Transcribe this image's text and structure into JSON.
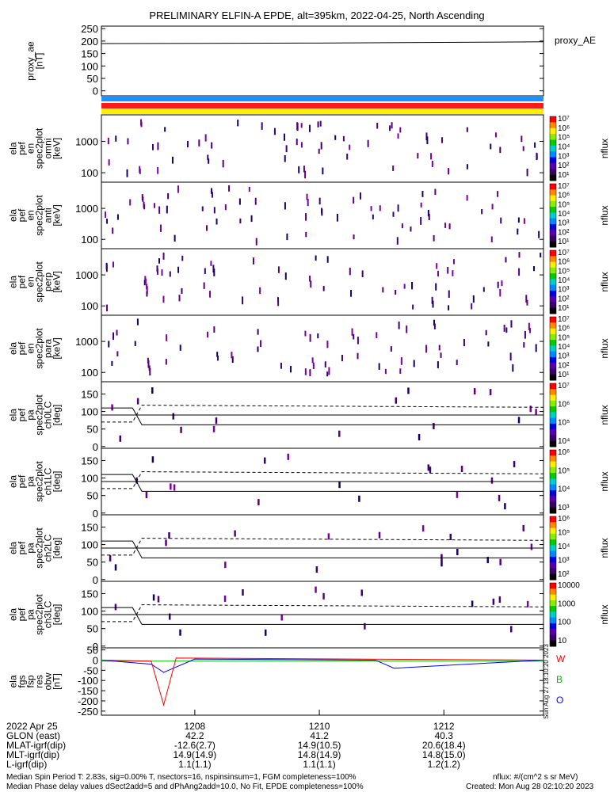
{
  "title": "PRELIMINARY ELFIN-A EPDE, alt=395km, 2022-04-25, North Ascending",
  "panels": [
    {
      "id": "ae",
      "label_lines": [
        "proxy_ae",
        "[nT]"
      ],
      "right_label": "proxy_AE",
      "ticks": [
        "250",
        "200",
        "150",
        "100",
        "50",
        "0"
      ],
      "tick_values": [
        250,
        200,
        150,
        100,
        50,
        0
      ],
      "ylim": [
        -20,
        260
      ]
    },
    {
      "id": "spec_omni",
      "label_lines": [
        "ela",
        "pef",
        "en",
        "spec2plot",
        "omni",
        "[keV]"
      ],
      "ticks": [
        "1000",
        "100"
      ],
      "tick_values": [
        1000,
        100
      ],
      "ylim": [
        50,
        7000
      ],
      "scale": "log",
      "colorbar": {
        "labels": [
          "10⁷",
          "10⁶",
          "10⁵",
          "10⁴",
          "10³",
          "10²",
          "10¹"
        ],
        "unit": "nflux"
      }
    },
    {
      "id": "spec_anti",
      "label_lines": [
        "ela",
        "pef",
        "en",
        "spec2plot",
        "anti",
        "[keV]"
      ],
      "ticks": [
        "1000",
        "100"
      ],
      "tick_values": [
        1000,
        100
      ],
      "ylim": [
        50,
        7000
      ],
      "scale": "log",
      "colorbar": {
        "labels": [
          "10⁷",
          "10⁶",
          "10⁵",
          "10⁴",
          "10³",
          "10²",
          "10¹"
        ],
        "unit": "nflux"
      }
    },
    {
      "id": "spec_perp",
      "label_lines": [
        "ela",
        "pef",
        "en",
        "spec2plot",
        "perp",
        "[keV]"
      ],
      "ticks": [
        "1000",
        "100"
      ],
      "tick_values": [
        1000,
        100
      ],
      "ylim": [
        50,
        7000
      ],
      "scale": "log",
      "colorbar": {
        "labels": [
          "10⁷",
          "10⁶",
          "10⁵",
          "10⁴",
          "10³",
          "10²",
          "10¹"
        ],
        "unit": "nflux"
      }
    },
    {
      "id": "spec_para",
      "label_lines": [
        "ela",
        "pef",
        "en",
        "spec2plot",
        "para",
        "[keV]"
      ],
      "ticks": [
        "1000",
        "100"
      ],
      "tick_values": [
        1000,
        100
      ],
      "ylim": [
        50,
        7000
      ],
      "scale": "log",
      "colorbar": {
        "labels": [
          "10⁷",
          "10⁶",
          "10⁵",
          "10⁴",
          "10³",
          "10²",
          "10¹"
        ],
        "unit": "nflux"
      }
    },
    {
      "id": "pa_ch0",
      "label_lines": [
        "ela",
        "pef",
        "pa",
        "spec2plot",
        "ch0LC",
        "[deg]"
      ],
      "ticks": [
        "150",
        "100",
        "50",
        "0"
      ],
      "tick_values": [
        150,
        100,
        50,
        0
      ],
      "ylim": [
        -5,
        185
      ],
      "colorbar": {
        "labels": [
          "10⁷",
          "10⁶",
          "10⁵",
          "10⁴"
        ],
        "unit": "nflux"
      }
    },
    {
      "id": "pa_ch1",
      "label_lines": [
        "ela",
        "pef",
        "pa",
        "spec2plot",
        "ch1LC",
        "[deg]"
      ],
      "ticks": [
        "150",
        "100",
        "50",
        "0"
      ],
      "tick_values": [
        150,
        100,
        50,
        0
      ],
      "ylim": [
        -5,
        185
      ],
      "colorbar": {
        "labels": [
          "10⁶",
          "10⁵",
          "10⁴",
          "10³"
        ],
        "unit": "nflux"
      }
    },
    {
      "id": "pa_ch2",
      "label_lines": [
        "ela",
        "pef",
        "pa",
        "spec2plot",
        "ch2LC",
        "[deg]"
      ],
      "ticks": [
        "150",
        "100",
        "50",
        "0"
      ],
      "tick_values": [
        150,
        100,
        50,
        0
      ],
      "ylim": [
        -5,
        185
      ],
      "colorbar": {
        "labels": [
          "10⁶",
          "10⁵",
          "10⁴",
          "10³",
          "10²"
        ],
        "unit": "nflux"
      }
    },
    {
      "id": "pa_ch3",
      "label_lines": [
        "ela",
        "pef",
        "pa",
        "spec2plot",
        "ch3LC",
        "[deg]"
      ],
      "ticks": [
        "150",
        "100",
        "50",
        "0"
      ],
      "tick_values": [
        150,
        100,
        50,
        0
      ],
      "ylim": [
        -5,
        185
      ],
      "colorbar": {
        "labels": [
          "10000",
          "1000",
          "100",
          "10"
        ],
        "unit": "nflux"
      }
    },
    {
      "id": "fgs",
      "label_lines": [
        "ela",
        "fgs",
        "fsp",
        "res",
        "obw",
        "[nT]"
      ],
      "ticks": [
        "50",
        "0",
        "-50",
        "-100",
        "-150",
        "-200",
        "-250"
      ],
      "tick_values": [
        50,
        0,
        -50,
        -100,
        -150,
        -200,
        -250
      ],
      "ylim": [
        -270,
        60
      ],
      "legend": [
        "W",
        "B",
        "O"
      ]
    }
  ],
  "stamp": "Sun Aug 27 18:10:20 2023",
  "xaxis": {
    "rows": [
      {
        "label": "2022 Apr 25",
        "values": [
          "1208",
          "1210",
          "1212"
        ]
      },
      {
        "label": "GLON (east)",
        "values": [
          "42.2",
          "41.2",
          "40.3"
        ]
      },
      {
        "label": "MLAT-igrf(dip)",
        "values": [
          "-12.6(2.7)",
          "14.9(10.5)",
          "20.6(18.4)"
        ]
      },
      {
        "label": "MLT-igrf(dip)",
        "values": [
          "14.9(14.9)",
          "14.8(14.9)",
          "14.8(15.0)"
        ]
      },
      {
        "label": "L-igrf(dip)",
        "values": [
          "1.1(1.1)",
          "1.1(1.1)",
          "1.2(1.2)"
        ]
      }
    ],
    "tick_minutes": [
      1208,
      1210,
      1212
    ]
  },
  "footer": {
    "line1_left": "Median Spin Period T: 2.83s, sig=0.00% T, nsectors=16, nspinsinsum=1, FGM completeness=100%",
    "line2_left": "Median Phase delay values dSect2add=5 and dPhAng2add=10.0, No Fit, EPDE completeness=100%",
    "line1_right": "nflux: #/(cm^2 s sr MeV)",
    "line2_right": "Created: Mon Aug 28 02:10:20 2023"
  },
  "colors": {
    "bar_blue": "#1e90ff",
    "bar_red": "#ff1a1a",
    "bar_yellow": "#ffee00",
    "series_w": "#ff0000",
    "series_b": "#00bb00",
    "series_o": "#0000ff"
  },
  "chart_data": {
    "type": "line",
    "x_range_minutes": [
      1206.5,
      1213.6
    ],
    "proxy_ae": {
      "x": [
        1206.5,
        1210.0,
        1213.6
      ],
      "y": [
        190,
        192,
        197
      ]
    },
    "pa_loss_cone": {
      "x": [
        1206.5,
        1207.0,
        1207.15,
        1213.6
      ],
      "y": [
        110,
        110,
        62,
        62
      ]
    },
    "pa_trapped": {
      "x": [
        1206.5,
        1207.0,
        1207.15,
        1213.6
      ],
      "y": [
        70,
        70,
        118,
        112
      ]
    },
    "pa_perp": {
      "x": [
        1206.5,
        1213.6
      ],
      "y": [
        90,
        90
      ]
    },
    "fgs_w": {
      "x": [
        1206.5,
        1207.3,
        1207.5,
        1207.7,
        1213.6
      ],
      "y": [
        0,
        -5,
        -220,
        10,
        0
      ]
    },
    "fgs_b": {
      "x": [
        1206.5,
        1213.6
      ],
      "y": [
        -5,
        -5
      ]
    },
    "fgs_o": {
      "x": [
        1206.5,
        1207.3,
        1207.5,
        1208.0,
        1210.9,
        1211.2,
        1213.6
      ],
      "y": [
        0,
        -20,
        -60,
        5,
        0,
        -40,
        0
      ]
    }
  }
}
